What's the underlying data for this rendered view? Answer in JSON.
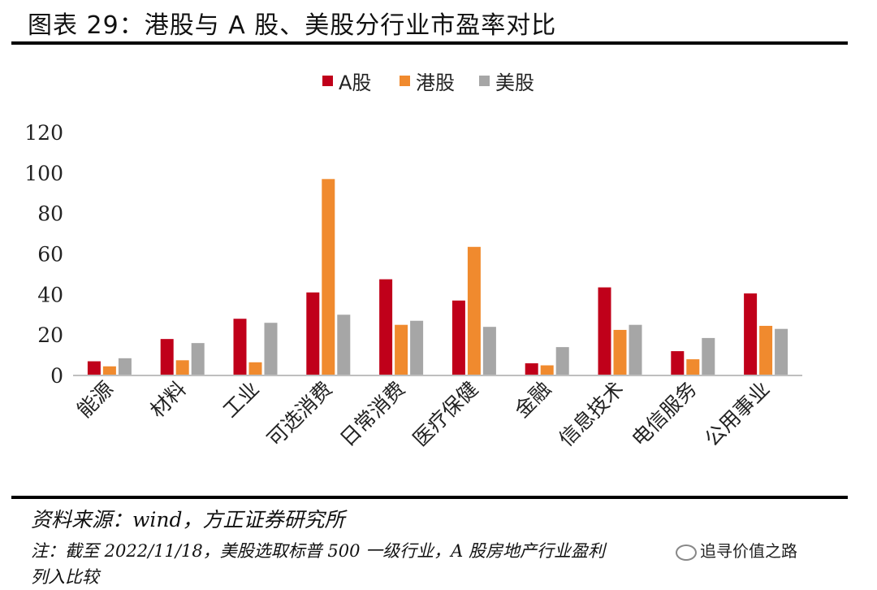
{
  "title": "图表 29：港股与 A 股、美股分行业市盈率对比",
  "source": "资料来源：wind，方正证券研究所",
  "note_line1": "注：截至 2022/11/18，美股选取标普 500 一级行业，A 股房地产行业盈利",
  "note_line2": "列入比较",
  "watermark": "追寻价值之路",
  "chart_data": {
    "type": "bar",
    "categories": [
      "能源",
      "材料",
      "工业",
      "可选消费",
      "日常消费",
      "医疗保健",
      "金融",
      "信息技术",
      "电信服务",
      "公用事业"
    ],
    "series": [
      {
        "name": "A股",
        "color": "#C0001A",
        "values": [
          7,
          18,
          28,
          41,
          47.5,
          37,
          6,
          43.5,
          12,
          40.5
        ]
      },
      {
        "name": "港股",
        "color": "#F08A2E",
        "values": [
          4.5,
          7.5,
          6.5,
          97,
          25,
          63.5,
          5,
          22.5,
          8,
          24.5
        ]
      },
      {
        "name": "美股",
        "color": "#A6A6A6",
        "values": [
          8.5,
          16,
          26,
          30,
          27,
          24,
          14,
          25,
          18.5,
          23
        ]
      }
    ],
    "yticks": [
      0,
      20,
      40,
      60,
      80,
      100,
      120
    ],
    "ylim": [
      0,
      120
    ],
    "legend_position": "top-center",
    "grid": false
  }
}
